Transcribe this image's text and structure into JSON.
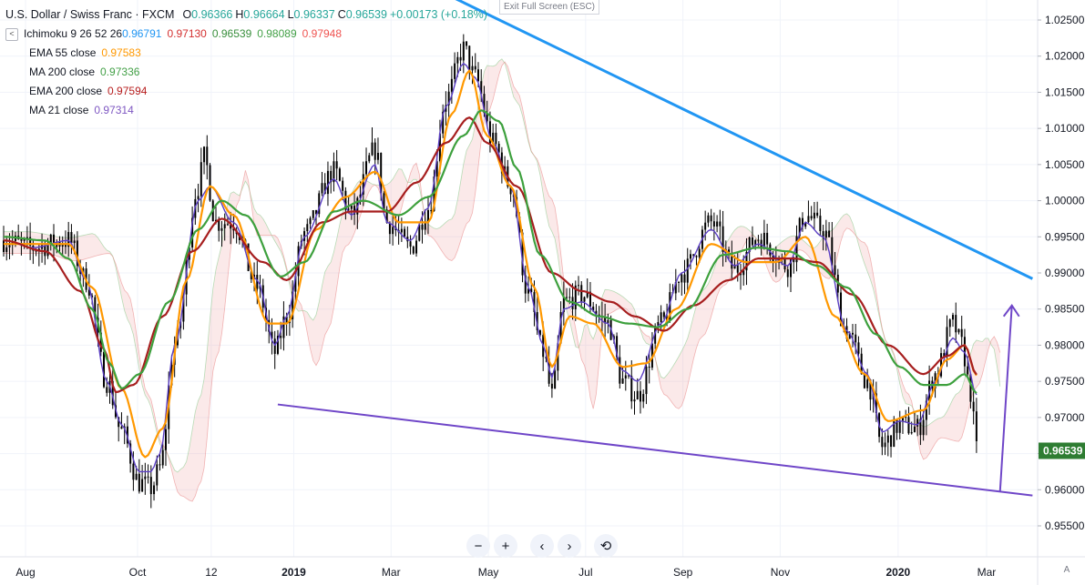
{
  "header": {
    "symbol_title": "U.S. Dollar / Swiss Franc · FXCM",
    "ohlc": [
      {
        "label": "O",
        "value": "0.96366"
      },
      {
        "label": "H",
        "value": "0.96664"
      },
      {
        "label": "L",
        "value": "0.96337"
      },
      {
        "label": "C",
        "value": "0.96539"
      },
      {
        "label": "",
        "value": "+0.00173 (+0.18%)"
      }
    ],
    "ohlc_color": "#26a69a",
    "toggle_glyph": "<",
    "exit_fullscreen": "Exit Full Screen (ESC)"
  },
  "indicators": [
    {
      "name": "Ichimoku 9 26 52 26",
      "values": [
        {
          "v": "0.96791",
          "color": "#2196f3"
        },
        {
          "v": "0.97130",
          "color": "#d32f2f"
        },
        {
          "v": "0.96539",
          "color": "#388e3c"
        },
        {
          "v": "0.98089",
          "color": "#43a047"
        },
        {
          "v": "0.97948",
          "color": "#ef5350"
        }
      ]
    },
    {
      "name": "EMA 55 close",
      "values": [
        {
          "v": "0.97583",
          "color": "#ff9800"
        }
      ]
    },
    {
      "name": "MA 200 close",
      "values": [
        {
          "v": "0.97336",
          "color": "#43a047"
        }
      ]
    },
    {
      "name": "EMA 200 close",
      "values": [
        {
          "v": "0.97594",
          "color": "#b71c1c"
        }
      ]
    },
    {
      "name": "MA 21 close",
      "values": [
        {
          "v": "0.97314",
          "color": "#7e57c2"
        }
      ]
    }
  ],
  "price_label": {
    "text": "0.96539",
    "color": "#2e7d32",
    "value": 0.96539
  },
  "controls": {
    "zoom_out": "−",
    "zoom_in": "+",
    "scroll_left": "‹",
    "scroll_right": "›",
    "reset": "⟲",
    "auto": "A"
  },
  "chart_data": {
    "type": "line",
    "title": "U.S. Dollar / Swiss Franc · FXCM",
    "y_ticks": [
      "1.02500",
      "1.02000",
      "1.01500",
      "1.01000",
      "1.00500",
      "1.00000",
      "0.99500",
      "0.99000",
      "0.98500",
      "0.98000",
      "0.97500",
      "0.97000",
      "0.96500",
      "0.96000",
      "0.95500"
    ],
    "ylim": [
      0.9515,
      1.0268
    ],
    "x_ticks": [
      "Aug",
      "Oct",
      "12",
      "2019",
      "Mar",
      "May",
      "Jul",
      "Sep",
      "Nov",
      "2020",
      "Mar"
    ],
    "x_tick_bold": [
      "2019",
      "2020"
    ],
    "x_tick_bars": [
      0,
      38,
      63,
      91,
      124,
      157,
      190,
      223,
      256,
      296,
      326
    ],
    "bar_count": 350,
    "series": [
      {
        "name": "Price",
        "color": "#000000",
        "waypoints": [
          [
            0,
            0.9945
          ],
          [
            10,
            0.9935
          ],
          [
            22,
            0.9945
          ],
          [
            28,
            0.989
          ],
          [
            35,
            0.975
          ],
          [
            40,
            0.968
          ],
          [
            46,
            0.961
          ],
          [
            50,
            0.9602
          ],
          [
            53,
            0.963
          ],
          [
            58,
            0.98
          ],
          [
            66,
            1.002
          ],
          [
            68,
            1.006
          ],
          [
            72,
            0.997
          ],
          [
            78,
            0.997
          ],
          [
            86,
            0.988
          ],
          [
            92,
            0.979
          ],
          [
            96,
            0.984
          ],
          [
            102,
            0.9955
          ],
          [
            112,
            1.004
          ],
          [
            118,
            0.998
          ],
          [
            126,
            1.007
          ],
          [
            130,
            0.997
          ],
          [
            138,
            0.9935
          ],
          [
            144,
            0.999
          ],
          [
            150,
            1.014
          ],
          [
            156,
            1.021
          ],
          [
            160,
            1.017
          ],
          [
            166,
            1.008
          ],
          [
            172,
            1.002
          ],
          [
            178,
            0.987
          ],
          [
            183,
            0.979
          ],
          [
            186,
            0.973
          ],
          [
            190,
            0.986
          ],
          [
            196,
            0.987
          ],
          [
            205,
            0.983
          ],
          [
            210,
            0.975
          ],
          [
            215,
            0.973
          ],
          [
            223,
            0.983
          ],
          [
            230,
            0.99
          ],
          [
            240,
            0.997
          ],
          [
            248,
            0.9905
          ],
          [
            256,
            0.995
          ],
          [
            266,
            0.991
          ],
          [
            272,
            0.998
          ],
          [
            278,
            0.996
          ],
          [
            286,
            0.982
          ],
          [
            293,
            0.975
          ],
          [
            298,
            0.966
          ],
          [
            304,
            0.969
          ],
          [
            310,
            0.9685
          ],
          [
            316,
            0.976
          ],
          [
            322,
            0.983
          ],
          [
            325,
            0.98
          ],
          [
            328,
            0.9735
          ],
          [
            330,
            0.96539
          ]
        ]
      },
      {
        "name": "MA 21 close",
        "color": "#5b3fc4",
        "waypoints": [
          [
            0,
            0.9945
          ],
          [
            10,
            0.9935
          ],
          [
            22,
            0.9945
          ],
          [
            28,
            0.989
          ],
          [
            35,
            0.975
          ],
          [
            40,
            0.969
          ],
          [
            46,
            0.9625
          ],
          [
            50,
            0.9625
          ],
          [
            53,
            0.965
          ],
          [
            58,
            0.98
          ],
          [
            66,
            1.0
          ],
          [
            70,
            1.002
          ],
          [
            78,
            0.997
          ],
          [
            86,
            0.989
          ],
          [
            92,
            0.98
          ],
          [
            96,
            0.984
          ],
          [
            102,
            0.995
          ],
          [
            112,
            1.003
          ],
          [
            118,
            0.998
          ],
          [
            126,
            1.005
          ],
          [
            130,
            0.997
          ],
          [
            138,
            0.9945
          ],
          [
            144,
            0.999
          ],
          [
            150,
            1.013
          ],
          [
            156,
            1.019
          ],
          [
            160,
            1.017
          ],
          [
            166,
            1.008
          ],
          [
            172,
            1.002
          ],
          [
            178,
            0.988
          ],
          [
            183,
            0.98
          ],
          [
            186,
            0.9755
          ],
          [
            190,
            0.985
          ],
          [
            196,
            0.986
          ],
          [
            205,
            0.983
          ],
          [
            210,
            0.9765
          ],
          [
            215,
            0.975
          ],
          [
            223,
            0.983
          ],
          [
            230,
            0.99
          ],
          [
            240,
            0.996
          ],
          [
            248,
            0.991
          ],
          [
            256,
            0.994
          ],
          [
            266,
            0.991
          ],
          [
            272,
            0.997
          ],
          [
            278,
            0.995
          ],
          [
            286,
            0.982
          ],
          [
            293,
            0.976
          ],
          [
            298,
            0.968
          ],
          [
            304,
            0.9695
          ],
          [
            310,
            0.969
          ],
          [
            316,
            0.975
          ],
          [
            322,
            0.981
          ],
          [
            326,
            0.979
          ],
          [
            330,
            0.97314
          ]
        ]
      },
      {
        "name": "EMA 55 close",
        "color": "#ff9800",
        "waypoints": [
          [
            0,
            0.994
          ],
          [
            22,
            0.994
          ],
          [
            30,
            0.988
          ],
          [
            40,
            0.974
          ],
          [
            48,
            0.9645
          ],
          [
            54,
            0.9685
          ],
          [
            62,
            0.989
          ],
          [
            70,
            1.002
          ],
          [
            78,
            0.998
          ],
          [
            90,
            0.983
          ],
          [
            96,
            0.983
          ],
          [
            106,
            0.996
          ],
          [
            116,
            1.0005
          ],
          [
            126,
            1.004
          ],
          [
            134,
            0.997
          ],
          [
            144,
            0.997
          ],
          [
            152,
            1.012
          ],
          [
            158,
            1.018
          ],
          [
            164,
            1.009
          ],
          [
            172,
            1.002
          ],
          [
            180,
            0.988
          ],
          [
            186,
            0.977
          ],
          [
            192,
            0.984
          ],
          [
            200,
            0.983
          ],
          [
            210,
            0.977
          ],
          [
            218,
            0.9775
          ],
          [
            228,
            0.985
          ],
          [
            240,
            0.994
          ],
          [
            252,
            0.9915
          ],
          [
            262,
            0.9915
          ],
          [
            272,
            0.995
          ],
          [
            282,
            0.984
          ],
          [
            292,
            0.976
          ],
          [
            300,
            0.9695
          ],
          [
            312,
            0.971
          ],
          [
            320,
            0.978
          ],
          [
            326,
            0.98
          ],
          [
            330,
            0.97583
          ]
        ]
      },
      {
        "name": "EMA 200 close",
        "color": "#a61e1e",
        "waypoints": [
          [
            0,
            0.9945
          ],
          [
            14,
            0.993
          ],
          [
            26,
            0.9875
          ],
          [
            34,
            0.9795
          ],
          [
            38,
            0.9735
          ],
          [
            44,
            0.9745
          ],
          [
            54,
            0.984
          ],
          [
            64,
            0.993
          ],
          [
            74,
            0.9975
          ],
          [
            88,
            0.9915
          ],
          [
            96,
            0.989
          ],
          [
            108,
            0.997
          ],
          [
            118,
            0.9985
          ],
          [
            130,
            0.9985
          ],
          [
            140,
            1.0025
          ],
          [
            150,
            1.008
          ],
          [
            158,
            1.0115
          ],
          [
            164,
            1.008
          ],
          [
            174,
            1.002
          ],
          [
            186,
            0.99
          ],
          [
            196,
            0.9875
          ],
          [
            206,
            0.986
          ],
          [
            214,
            0.984
          ],
          [
            224,
            0.982
          ],
          [
            234,
            0.9855
          ],
          [
            246,
            0.989
          ],
          [
            256,
            0.992
          ],
          [
            268,
            0.992
          ],
          [
            276,
            0.9915
          ],
          [
            288,
            0.987
          ],
          [
            300,
            0.98
          ],
          [
            312,
            0.976
          ],
          [
            320,
            0.9785
          ],
          [
            326,
            0.98
          ],
          [
            330,
            0.97594
          ]
        ]
      },
      {
        "name": "MA 200 close",
        "color": "#3da03d",
        "waypoints": [
          [
            0,
            0.995
          ],
          [
            14,
            0.9945
          ],
          [
            22,
            0.992
          ],
          [
            30,
            0.985
          ],
          [
            36,
            0.9775
          ],
          [
            40,
            0.974
          ],
          [
            46,
            0.976
          ],
          [
            56,
            0.986
          ],
          [
            66,
            0.996
          ],
          [
            74,
            1.0
          ],
          [
            82,
            0.998
          ],
          [
            94,
            0.9895
          ],
          [
            102,
            0.9915
          ],
          [
            112,
            0.9985
          ],
          [
            122,
            1.0
          ],
          [
            134,
            0.998
          ],
          [
            144,
            1.0005
          ],
          [
            156,
            1.009
          ],
          [
            162,
            1.0125
          ],
          [
            168,
            1.011
          ],
          [
            174,
            1.0045
          ],
          [
            182,
            0.9925
          ],
          [
            192,
            0.986
          ],
          [
            202,
            0.984
          ],
          [
            212,
            0.983
          ],
          [
            222,
            0.9825
          ],
          [
            232,
            0.985
          ],
          [
            244,
            0.9925
          ],
          [
            256,
            0.9935
          ],
          [
            266,
            0.993
          ],
          [
            276,
            0.991
          ],
          [
            286,
            0.988
          ],
          [
            296,
            0.9815
          ],
          [
            304,
            0.977
          ],
          [
            312,
            0.9745
          ],
          [
            320,
            0.9745
          ],
          [
            326,
            0.976
          ],
          [
            330,
            0.97336
          ]
        ]
      }
    ],
    "trendlines": [
      {
        "name": "Upper trendline",
        "color": "#2196f3",
        "from": [
          147,
          1.0292
        ],
        "to": [
          349,
          0.9892
        ]
      },
      {
        "name": "Lower trendline",
        "color": "#6f46c8",
        "from": [
          93,
          0.9718
        ],
        "to": [
          349,
          0.9592
        ]
      }
    ],
    "projection_arrow": {
      "color": "#6f46c8",
      "from": [
        338,
        0.9598
      ],
      "to": [
        342,
        0.9855
      ]
    }
  }
}
